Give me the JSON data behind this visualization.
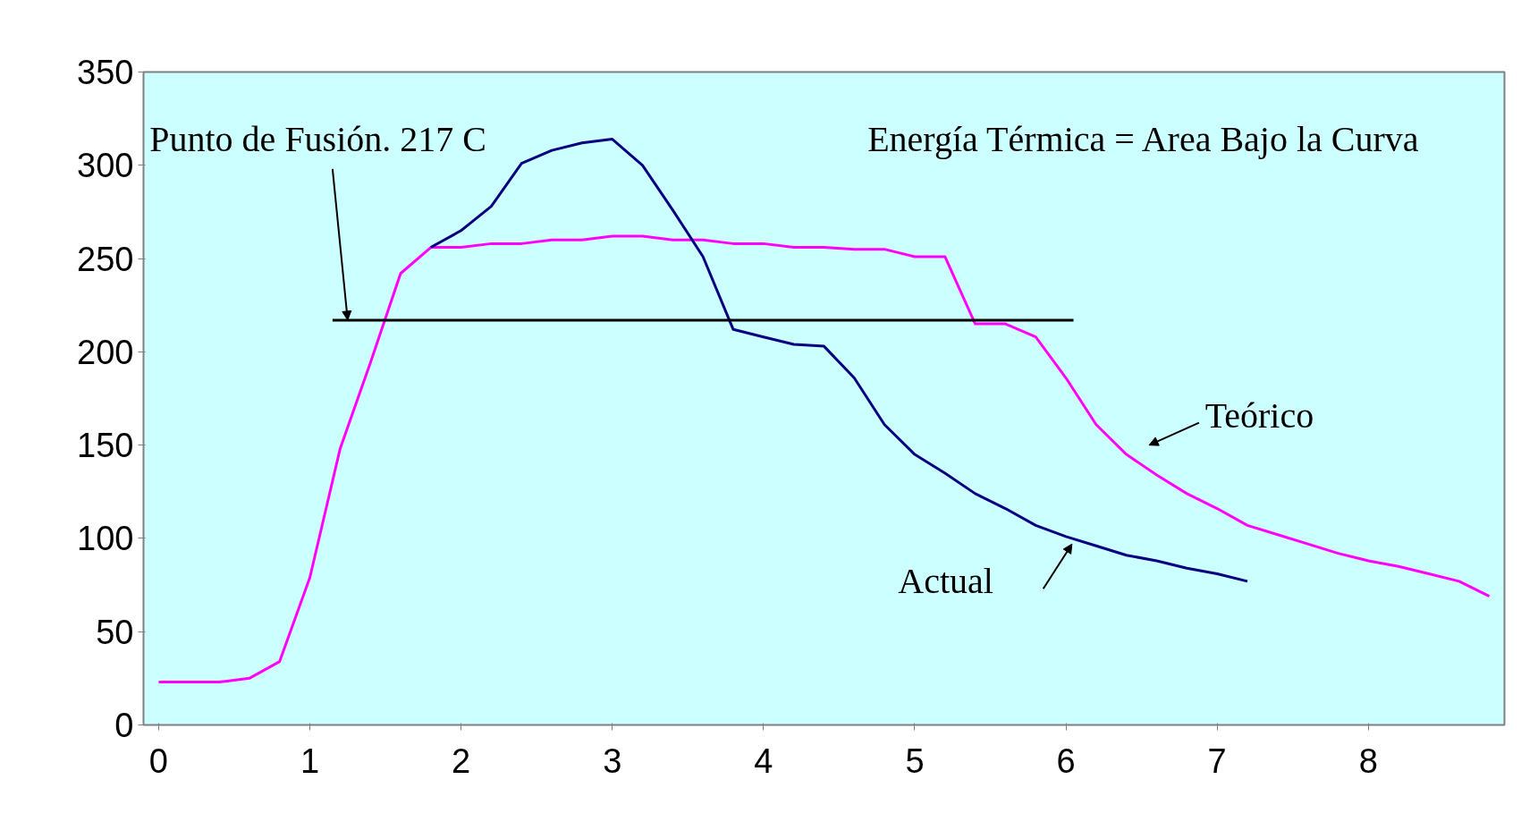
{
  "chart_data": {
    "type": "line",
    "grid": false,
    "marker": "none",
    "line_style": "solid",
    "xlim": [
      -0.1,
      8.9
    ],
    "ylim": [
      0,
      350
    ],
    "xticks": [
      0,
      1,
      2,
      3,
      4,
      5,
      6,
      7,
      8
    ],
    "yticks": [
      0,
      50,
      100,
      150,
      200,
      250,
      300,
      350
    ],
    "series": [
      {
        "name": "Teórico",
        "color": "#ff00ff",
        "x": [
          0,
          0.2,
          0.4,
          0.6,
          0.8,
          1.0,
          1.2,
          1.4,
          1.6,
          1.8,
          2.0,
          2.2,
          2.4,
          2.6,
          2.8,
          3.0,
          3.2,
          3.4,
          3.6,
          3.8,
          4.0,
          4.2,
          4.4,
          4.6,
          4.8,
          5.0,
          5.2,
          5.4,
          5.6,
          5.8,
          6.0,
          6.2,
          6.4,
          6.6,
          6.8,
          7.0,
          7.2,
          7.4,
          7.6,
          7.8,
          8.0,
          8.2,
          8.4,
          8.6,
          8.8
        ],
        "values": [
          23,
          23,
          23,
          25,
          34,
          79,
          148,
          194,
          242,
          256,
          256,
          258,
          258,
          260,
          260,
          262,
          262,
          260,
          260,
          258,
          258,
          256,
          256,
          255,
          255,
          251,
          251,
          215,
          215,
          208,
          186,
          161,
          145,
          134,
          124,
          116,
          107,
          102,
          97,
          92,
          88,
          85,
          81,
          77,
          69
        ]
      },
      {
        "name": "Actual",
        "color": "#000080",
        "x": [
          1.8,
          2.0,
          2.2,
          2.4,
          2.6,
          2.8,
          3.0,
          3.2,
          3.4,
          3.6,
          3.8,
          4.0,
          4.2,
          4.4,
          4.6,
          4.8,
          5.0,
          5.2,
          5.4,
          5.6,
          5.8,
          6.0,
          6.2,
          6.4,
          6.6,
          6.8,
          7.0,
          7.2
        ],
        "values": [
          256,
          265,
          278,
          301,
          308,
          312,
          314,
          300,
          276,
          251,
          212,
          208,
          204,
          203,
          186,
          161,
          145,
          135,
          124,
          116,
          107,
          101,
          96,
          91,
          88,
          84,
          81,
          77
        ]
      },
      {
        "color": "#000000",
        "x": [
          1.15,
          6.05
        ],
        "values": [
          217,
          217
        ]
      }
    ],
    "annotations": [
      {
        "text": "Punto de Fusión. 217 C",
        "x": 1.25,
        "y": 217
      },
      "Energía Térmica = Area Bajo la Curva"
    ]
  }
}
